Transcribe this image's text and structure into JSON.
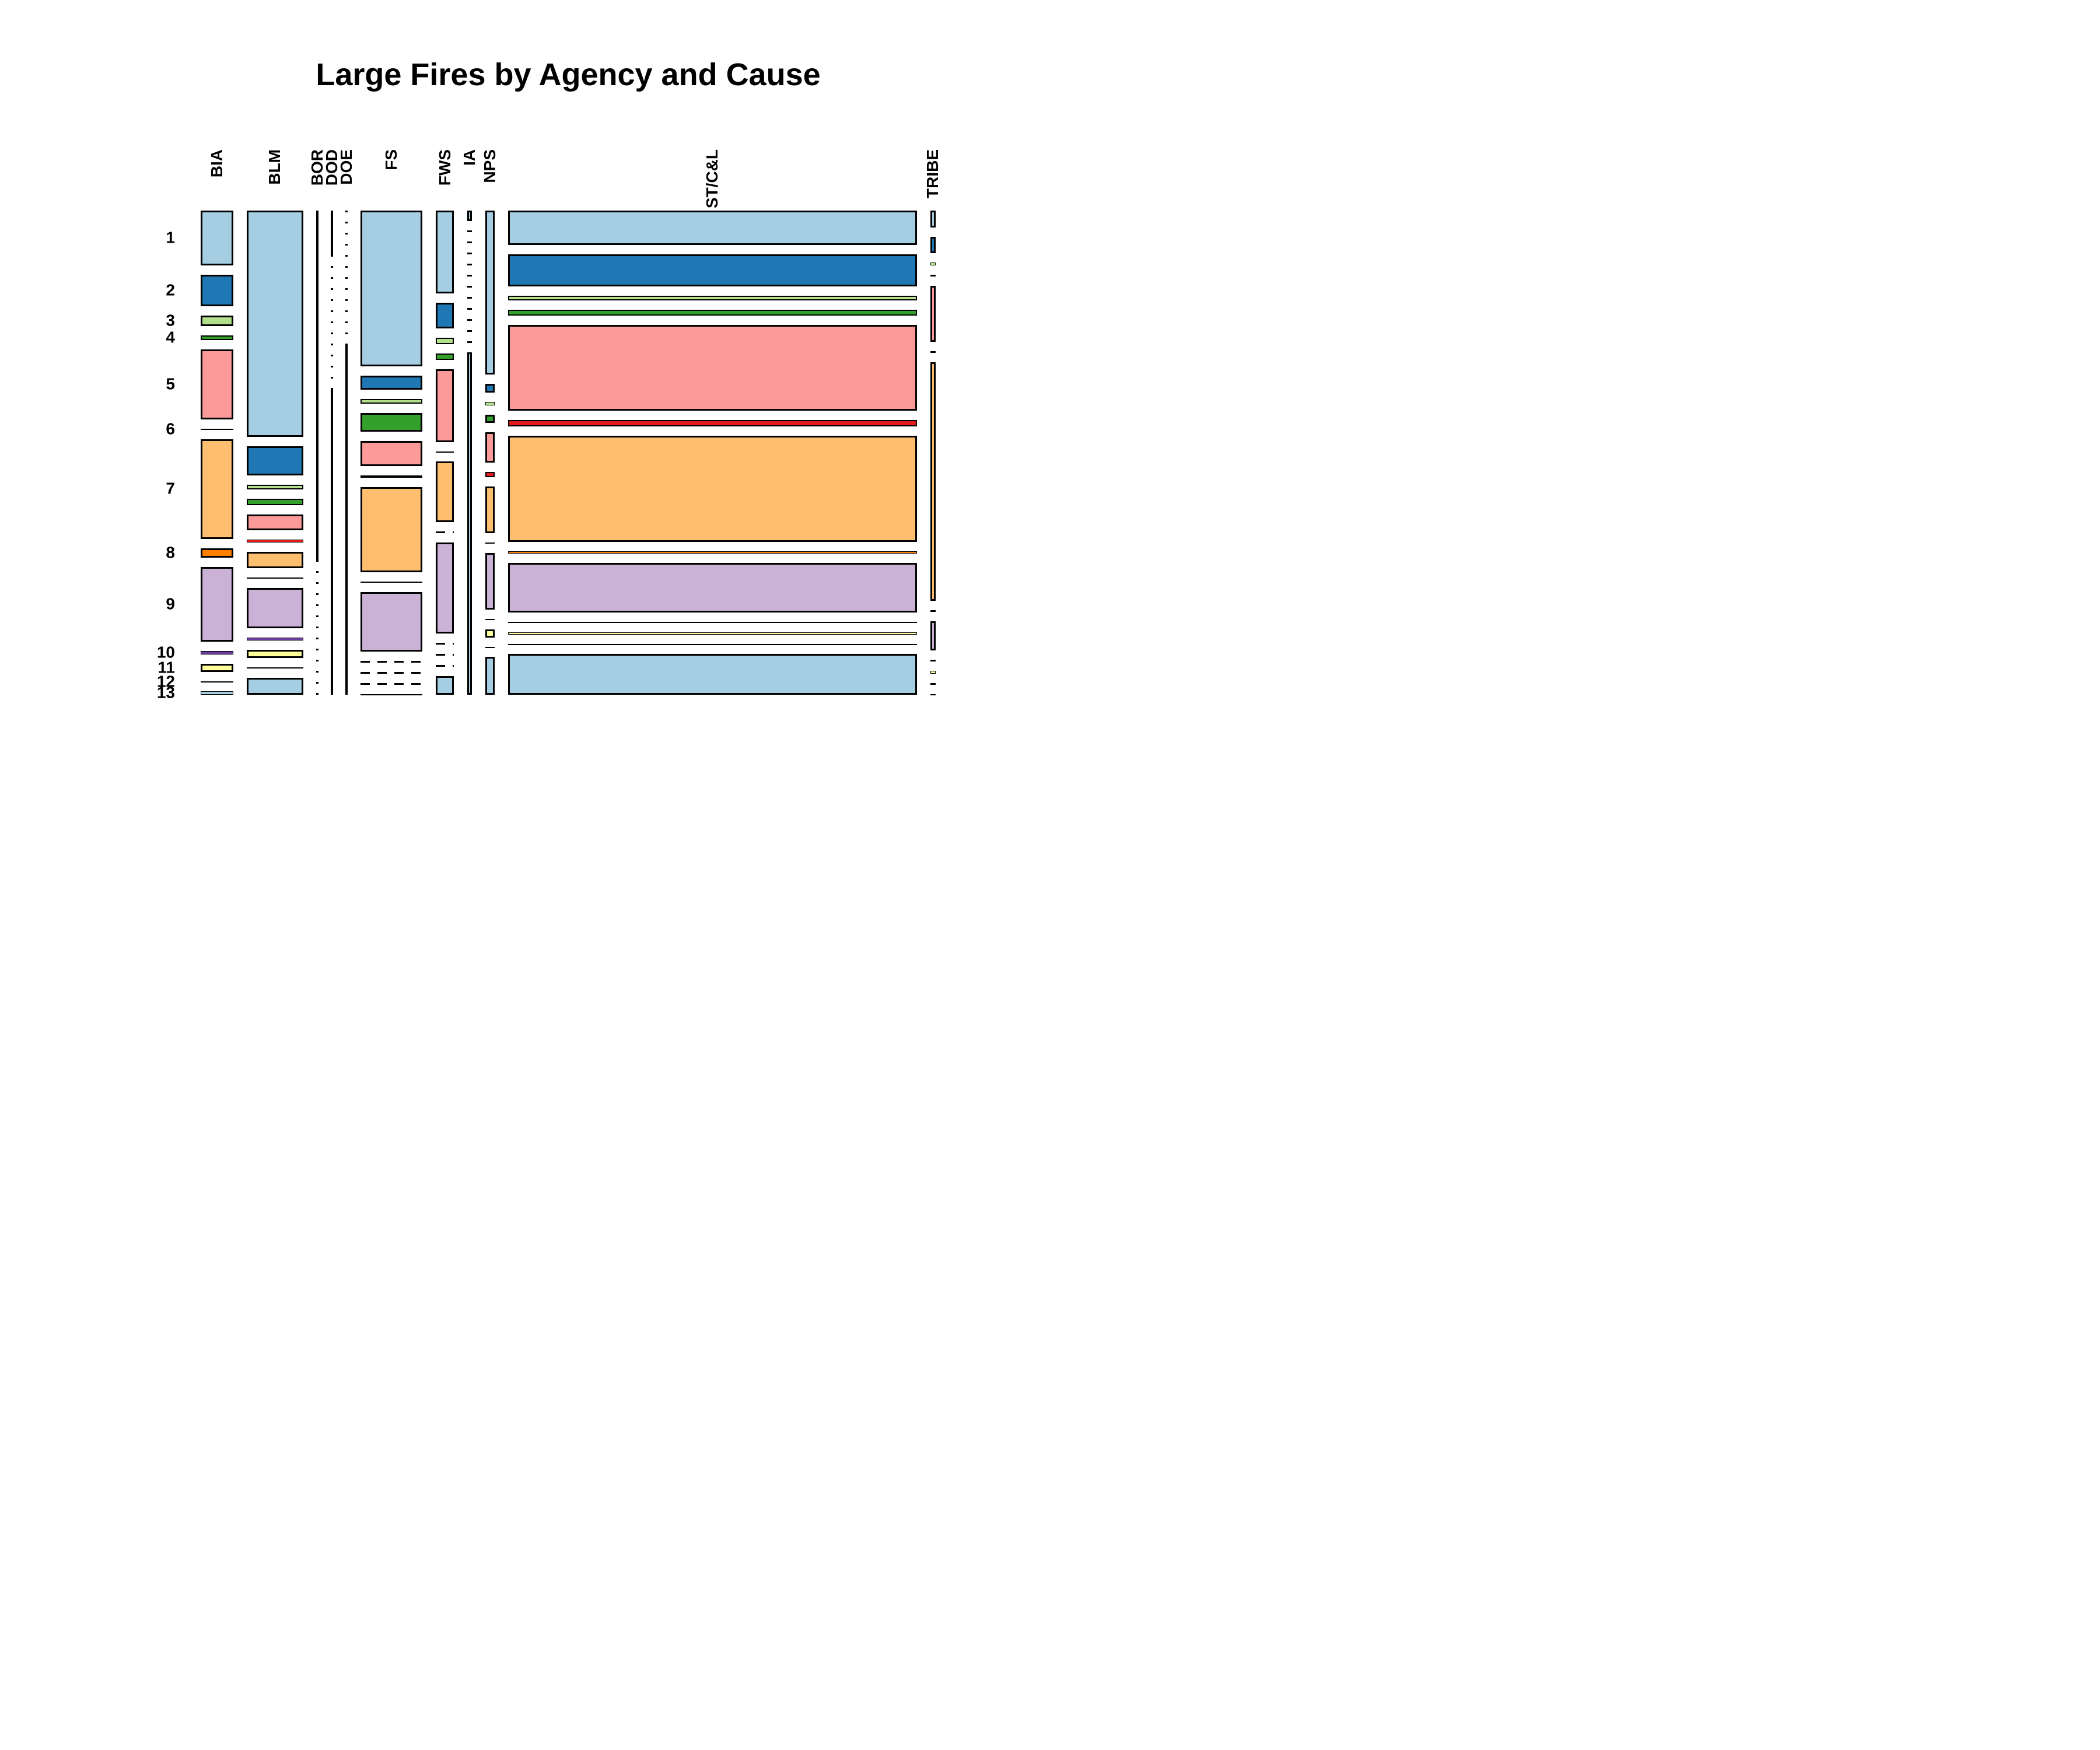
{
  "chart_data": {
    "type": "mosaic",
    "title": "Large Fires by Agency and Cause",
    "x_dimension": "Agency",
    "y_dimension": "Cause",
    "legend_position": "none",
    "grid": false,
    "note": "Mosaic plot: column width = agency share of large fires; cell height = cause share within agency; zero cells drawn as dashes/dots.",
    "cause_labels": [
      "1",
      "2",
      "3",
      "4",
      "5",
      "6",
      "7",
      "8",
      "9",
      "10",
      "11",
      "12",
      "13"
    ],
    "cause_colors": [
      "#A6CEE3",
      "#1F78B4",
      "#B2DF8A",
      "#33A02C",
      "#FB9A99",
      "#E31A1C",
      "#FDBF6F",
      "#FF7F00",
      "#CAB2D6",
      "#6A3D9A",
      "#FFFF99",
      "#B15928",
      "#A6CEE3"
    ],
    "agencies": [
      {
        "name": "BIA",
        "width_pct": 5.4,
        "cause_pct": [
          14.8,
          8.5,
          2.8,
          1.2,
          18.9,
          0.3,
          26.8,
          2.6,
          20.0,
          1.0,
          2.2,
          0.2,
          0.9
        ]
      },
      {
        "name": "BLM",
        "width_pct": 9.5,
        "cause_pct": [
          60.8,
          7.9,
          1.2,
          1.8,
          4.2,
          0.9,
          4.3,
          0.4,
          10.7,
          0.9,
          2.2,
          0.2,
          4.6
        ]
      },
      {
        "name": "BOR",
        "width_pct": 0.2,
        "cause_pct": [
          100,
          0,
          0,
          0,
          0,
          0,
          0,
          0,
          0,
          0,
          0,
          0,
          0
        ]
      },
      {
        "name": "DOD",
        "width_pct": 0.2,
        "cause_pct": [
          13,
          0,
          0,
          0,
          0,
          0,
          0,
          0,
          0,
          0,
          0,
          0,
          87
        ]
      },
      {
        "name": "DOE",
        "width_pct": 0.2,
        "cause_pct": [
          0,
          0,
          0,
          0,
          0,
          0,
          0,
          0,
          0,
          0,
          0,
          0,
          100
        ]
      },
      {
        "name": "FS",
        "width_pct": 10.3,
        "cause_pct": [
          42.5,
          3.7,
          1.4,
          5.0,
          6.9,
          0.6,
          23.2,
          0.3,
          16.2,
          0,
          0,
          0,
          0.2
        ]
      },
      {
        "name": "FWS",
        "width_pct": 3.0,
        "cause_pct": [
          22.7,
          7.0,
          1.7,
          1.8,
          20.0,
          0.2,
          16.5,
          0,
          25.0,
          0,
          0,
          0,
          5.1
        ]
      },
      {
        "name": "IA",
        "width_pct": 0.73,
        "cause_pct": [
          3.0,
          0,
          0,
          0,
          0,
          0,
          0,
          0,
          0,
          0,
          0,
          0,
          97.0
        ]
      },
      {
        "name": "NPS",
        "width_pct": 1.56,
        "cause_pct": [
          44.0,
          2.3,
          0.9,
          2.3,
          8.1,
          1.3,
          12.6,
          0.3,
          15.2,
          0.3,
          2.2,
          0.2,
          10.1
        ]
      },
      {
        "name": "ST/C&L",
        "width_pct": 68.2,
        "cause_pct": [
          9.2,
          8.6,
          1.3,
          1.6,
          23.0,
          1.7,
          28.5,
          0.7,
          13.2,
          0.3,
          0.7,
          0.2,
          10.9
        ]
      },
      {
        "name": "TRIBE",
        "width_pct": 0.88,
        "cause_pct": [
          4.6,
          4.6,
          0.7,
          0,
          15.4,
          0,
          65.5,
          0,
          8.1,
          0.5,
          0.7,
          0,
          0.2
        ]
      }
    ]
  }
}
